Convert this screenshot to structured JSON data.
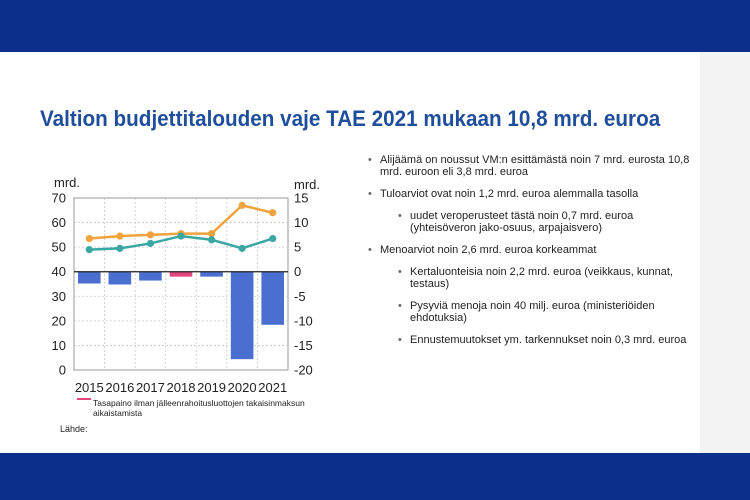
{
  "slide": {
    "title": "Valtion budjettitalouden vaje TAE 2021 mukaan 10,8 mrd. euroa",
    "legend_note": "Tasapaino ilman jälleenrahoitusluottojen takaisinmaksun aikaistamista",
    "source_label": "Lähde:",
    "bullets": [
      {
        "text": "Alijäämä on noussut VM:n esittämästä noin 7 mrd. eurosta 10,8 mrd. euroon eli 3,8 mrd. euroa",
        "level": 1
      },
      {
        "text": "Tuloarviot ovat noin 1,2 mrd. euroa alemmalla tasolla",
        "level": 1
      },
      {
        "text": "uudet veroperusteet tästä noin 0,7 mrd. euroa (yhteisöveron jako-osuus, arpajaisvero)",
        "level": 2
      },
      {
        "text": "Menoarviot noin 2,6 mrd. euroa korkeammat",
        "level": 1
      },
      {
        "text": "Kertaluonteisia noin 2,2 mrd. euroa (veikkaus, kunnat, testaus)",
        "level": 2
      },
      {
        "text": "Pysyviä menoja noin 40 milj. euroa (ministeriöiden ehdotuksia)",
        "level": 2
      },
      {
        "text": "Ennustemuutokset ym. tarkennukset noin 0,3 mrd. euroa",
        "level": 2
      }
    ]
  },
  "chart_data": {
    "type": "bar+line",
    "categories": [
      "2015",
      "2016",
      "2017",
      "2018",
      "2019",
      "2020",
      "2021"
    ],
    "left_axis": {
      "label": "mrd.",
      "range": [
        0,
        70
      ],
      "ticks": [
        "0",
        "10",
        "20",
        "30",
        "40",
        "50",
        "60",
        "70"
      ]
    },
    "right_axis": {
      "label": "mrd.",
      "range": [
        -20,
        15
      ],
      "ticks": [
        "-20",
        "-15",
        "-10",
        "-5",
        "0",
        "5",
        "10",
        "15"
      ]
    },
    "series": [
      {
        "kind": "bar",
        "axis": "right",
        "values": [
          -2.4,
          -2.6,
          -1.8,
          0,
          -1.0,
          -17.8,
          -10.8
        ],
        "color": "#4a6fd1"
      },
      {
        "kind": "bar",
        "axis": "right",
        "values": [
          null,
          null,
          null,
          -1.0,
          null,
          null,
          null
        ],
        "color": "#e0457b"
      },
      {
        "kind": "line",
        "axis": "left",
        "values": [
          53.5,
          54.5,
          55.0,
          55.5,
          55.5,
          67.0,
          64.0
        ],
        "color": "#f0a23c"
      },
      {
        "kind": "line",
        "axis": "left",
        "values": [
          49.0,
          49.5,
          51.5,
          54.5,
          53.0,
          49.5,
          53.5
        ],
        "color": "#3aa7a3"
      }
    ],
    "grid": true,
    "legend_position": "bottom-left"
  }
}
